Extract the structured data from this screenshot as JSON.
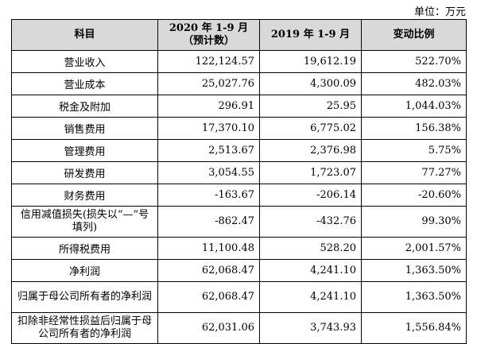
{
  "unit_label": "单位：万元",
  "headers": [
    "科目",
    "2020 年 1-9 月（预计数）",
    "2019 年 1-9 月",
    "变动比例"
  ],
  "rows": [
    {
      "subject": "营业收入",
      "y2020": "122,124.57",
      "y2019": "19,612.19",
      "change": "522.70%"
    },
    {
      "subject": "营业成本",
      "y2020": "25,027.76",
      "y2019": "4,300.09",
      "change": "482.03%"
    },
    {
      "subject": "税金及附加",
      "y2020": "296.91",
      "y2019": "25.95",
      "change": "1,044.03%"
    },
    {
      "subject": "销售费用",
      "y2020": "17,370.10",
      "y2019": "6,775.02",
      "change": "156.38%"
    },
    {
      "subject": "管理费用",
      "y2020": "2,513.67",
      "y2019": "2,376.98",
      "change": "5.75%"
    },
    {
      "subject": "研发费用",
      "y2020": "3,054.55",
      "y2019": "1,723.07",
      "change": "77.27%"
    },
    {
      "subject": "财务费用",
      "y2020": "-163.67",
      "y2019": "-206.14",
      "change": "-20.60%"
    },
    {
      "subject": "信用减值损失(损失以“—”号填列)",
      "y2020": "-862.47",
      "y2019": "-432.76",
      "change": "99.30%"
    },
    {
      "subject": "所得税费用",
      "y2020": "11,100.48",
      "y2019": "528.20",
      "change": "2,001.57%"
    },
    {
      "subject": "净利润",
      "y2020": "62,068.47",
      "y2019": "4,241.10",
      "change": "1,363.50%"
    },
    {
      "subject": "归属于母公司所有者的净利润",
      "y2020": "62,068.47",
      "y2019": "4,241.10",
      "change": "1,363.50%"
    },
    {
      "subject": "扣除非经常性损益后归属于母公司所有者的净利润",
      "y2020": "62,031.06",
      "y2019": "3,743.93",
      "change": "1,556.84%"
    }
  ]
}
